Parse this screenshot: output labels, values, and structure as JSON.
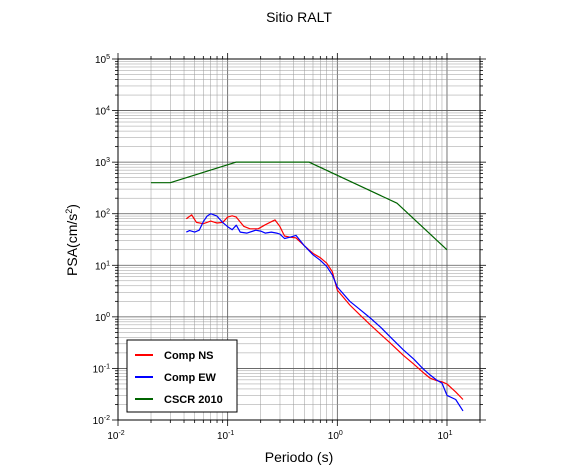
{
  "chart_data": {
    "type": "line",
    "title": "Sitio RALT",
    "xlabel": "Periodo (s)",
    "ylabel": "PSA(cm/s²)",
    "xscale": "log",
    "yscale": "log",
    "xlim": [
      0.01,
      20
    ],
    "ylim": [
      0.01,
      100000
    ],
    "grid": true,
    "legend_position": "bottom-left",
    "x_tick_labels": [
      "10-2",
      "10-1",
      "100",
      "101"
    ],
    "y_tick_labels": [
      "10-2",
      "10-1",
      "100",
      "101",
      "102",
      "103",
      "104",
      "105"
    ],
    "series": [
      {
        "name": "Comp NS",
        "color": "#ff0000",
        "points": [
          [
            0.042,
            80
          ],
          [
            0.047,
            95
          ],
          [
            0.052,
            68
          ],
          [
            0.06,
            64
          ],
          [
            0.07,
            72
          ],
          [
            0.08,
            66
          ],
          [
            0.09,
            68
          ],
          [
            0.1,
            86
          ],
          [
            0.11,
            91
          ],
          [
            0.12,
            86
          ],
          [
            0.14,
            57
          ],
          [
            0.16,
            51
          ],
          [
            0.19,
            51
          ],
          [
            0.22,
            61
          ],
          [
            0.25,
            70
          ],
          [
            0.27,
            76
          ],
          [
            0.3,
            56
          ],
          [
            0.33,
            37
          ],
          [
            0.37,
            35
          ],
          [
            0.42,
            34
          ],
          [
            0.5,
            24
          ],
          [
            0.6,
            17
          ],
          [
            0.7,
            14
          ],
          [
            0.8,
            11
          ],
          [
            0.9,
            7.5
          ],
          [
            1.0,
            3.3
          ],
          [
            1.3,
            1.7
          ],
          [
            1.6,
            1.1
          ],
          [
            2.0,
            0.7
          ],
          [
            2.5,
            0.45
          ],
          [
            3.0,
            0.32
          ],
          [
            4.0,
            0.18
          ],
          [
            5.0,
            0.12
          ],
          [
            6.0,
            0.085
          ],
          [
            7.0,
            0.065
          ],
          [
            8.0,
            0.058
          ],
          [
            9.0,
            0.055
          ],
          [
            10.0,
            0.05
          ],
          [
            12.0,
            0.035
          ],
          [
            14.0,
            0.025
          ]
        ]
      },
      {
        "name": "Comp EW",
        "color": "#0000ff",
        "points": [
          [
            0.042,
            44
          ],
          [
            0.045,
            47
          ],
          [
            0.05,
            44
          ],
          [
            0.055,
            48
          ],
          [
            0.06,
            70
          ],
          [
            0.065,
            90
          ],
          [
            0.07,
            100
          ],
          [
            0.08,
            90
          ],
          [
            0.09,
            68
          ],
          [
            0.1,
            56
          ],
          [
            0.11,
            49
          ],
          [
            0.12,
            60
          ],
          [
            0.13,
            44
          ],
          [
            0.15,
            42
          ],
          [
            0.18,
            48
          ],
          [
            0.2,
            46
          ],
          [
            0.22,
            42
          ],
          [
            0.25,
            44
          ],
          [
            0.28,
            42
          ],
          [
            0.3,
            40
          ],
          [
            0.33,
            33
          ],
          [
            0.37,
            35
          ],
          [
            0.42,
            38
          ],
          [
            0.5,
            24
          ],
          [
            0.6,
            16
          ],
          [
            0.7,
            12.5
          ],
          [
            0.8,
            9.5
          ],
          [
            0.9,
            6.5
          ],
          [
            1.0,
            3.8
          ],
          [
            1.3,
            2.0
          ],
          [
            1.6,
            1.4
          ],
          [
            2.0,
            0.95
          ],
          [
            2.5,
            0.62
          ],
          [
            3.0,
            0.42
          ],
          [
            4.0,
            0.23
          ],
          [
            5.0,
            0.15
          ],
          [
            6.0,
            0.1
          ],
          [
            7.0,
            0.075
          ],
          [
            8.0,
            0.06
          ],
          [
            9.0,
            0.052
          ],
          [
            10.0,
            0.03
          ],
          [
            12.0,
            0.025
          ],
          [
            14.0,
            0.015
          ]
        ]
      },
      {
        "name": "CSCR 2010",
        "color": "#006400",
        "points": [
          [
            0.02,
            400
          ],
          [
            0.03,
            400
          ],
          [
            0.12,
            1000
          ],
          [
            0.55,
            1000
          ],
          [
            3.5,
            160
          ],
          [
            10.0,
            20
          ]
        ]
      }
    ]
  }
}
